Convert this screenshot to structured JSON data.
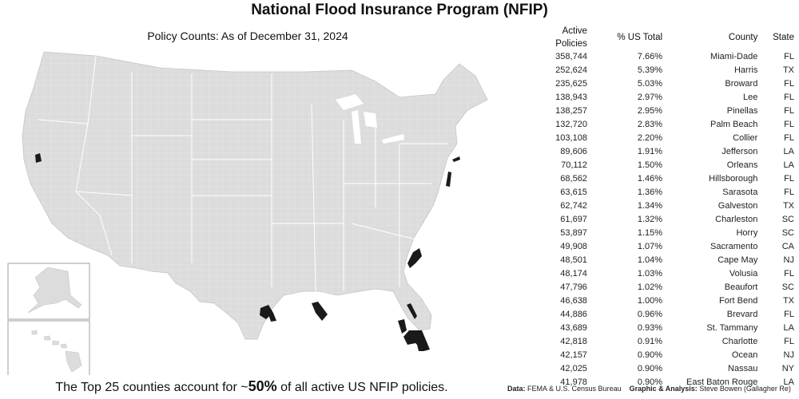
{
  "title": "National Flood Insurance Program (NFIP)",
  "subtitle": "Policy Counts: As of December 31, 2024",
  "colors": {
    "land": "#dcdcdc",
    "border": "#ffffff",
    "highlight": "#1a1a1a"
  },
  "table": {
    "headers": {
      "policies": "Active Policies",
      "pct": "% US Total",
      "county": "County",
      "state": "State"
    },
    "rows": [
      {
        "policies": "358,744",
        "pct": "7.66%",
        "county": "Miami-Dade",
        "state": "FL"
      },
      {
        "policies": "252,624",
        "pct": "5.39%",
        "county": "Harris",
        "state": "TX"
      },
      {
        "policies": "235,625",
        "pct": "5.03%",
        "county": "Broward",
        "state": "FL"
      },
      {
        "policies": "138,943",
        "pct": "2.97%",
        "county": "Lee",
        "state": "FL"
      },
      {
        "policies": "138,257",
        "pct": "2.95%",
        "county": "Pinellas",
        "state": "FL"
      },
      {
        "policies": "132,720",
        "pct": "2.83%",
        "county": "Palm Beach",
        "state": "FL"
      },
      {
        "policies": "103,108",
        "pct": "2.20%",
        "county": "Collier",
        "state": "FL"
      },
      {
        "policies": "89,606",
        "pct": "1.91%",
        "county": "Jefferson",
        "state": "LA"
      },
      {
        "policies": "70,112",
        "pct": "1.50%",
        "county": "Orleans",
        "state": "LA"
      },
      {
        "policies": "68,562",
        "pct": "1.46%",
        "county": "Hillsborough",
        "state": "FL"
      },
      {
        "policies": "63,615",
        "pct": "1.36%",
        "county": "Sarasota",
        "state": "FL"
      },
      {
        "policies": "62,742",
        "pct": "1.34%",
        "county": "Galveston",
        "state": "TX"
      },
      {
        "policies": "61,697",
        "pct": "1.32%",
        "county": "Charleston",
        "state": "SC"
      },
      {
        "policies": "53,897",
        "pct": "1.15%",
        "county": "Horry",
        "state": "SC"
      },
      {
        "policies": "49,908",
        "pct": "1.07%",
        "county": "Sacramento",
        "state": "CA"
      },
      {
        "policies": "48,501",
        "pct": "1.04%",
        "county": "Cape May",
        "state": "NJ"
      },
      {
        "policies": "48,174",
        "pct": "1.03%",
        "county": "Volusia",
        "state": "FL"
      },
      {
        "policies": "47,796",
        "pct": "1.02%",
        "county": "Beaufort",
        "state": "SC"
      },
      {
        "policies": "46,638",
        "pct": "1.00%",
        "county": "Fort Bend",
        "state": "TX"
      },
      {
        "policies": "44,886",
        "pct": "0.96%",
        "county": "Brevard",
        "state": "FL"
      },
      {
        "policies": "43,689",
        "pct": "0.93%",
        "county": "St. Tammany",
        "state": "LA"
      },
      {
        "policies": "42,818",
        "pct": "0.91%",
        "county": "Charlotte",
        "state": "FL"
      },
      {
        "policies": "42,157",
        "pct": "0.90%",
        "county": "Ocean",
        "state": "NJ"
      },
      {
        "policies": "42,025",
        "pct": "0.90%",
        "county": "Nassau",
        "state": "NY"
      },
      {
        "policies": "41,978",
        "pct": "0.90%",
        "county": "East Baton Rouge",
        "state": "LA"
      }
    ]
  },
  "footer": {
    "prefix": "The Top 25 counties account for ~",
    "highlight": "50%",
    "suffix": "of all active US NFIP policies."
  },
  "source": {
    "data_label": "Data:",
    "data_value": "FEMA & U.S. Census Bureau",
    "graphic_label": "Graphic & Analysis:",
    "graphic_value": "Steve Bowen (Gallagher Re)"
  }
}
